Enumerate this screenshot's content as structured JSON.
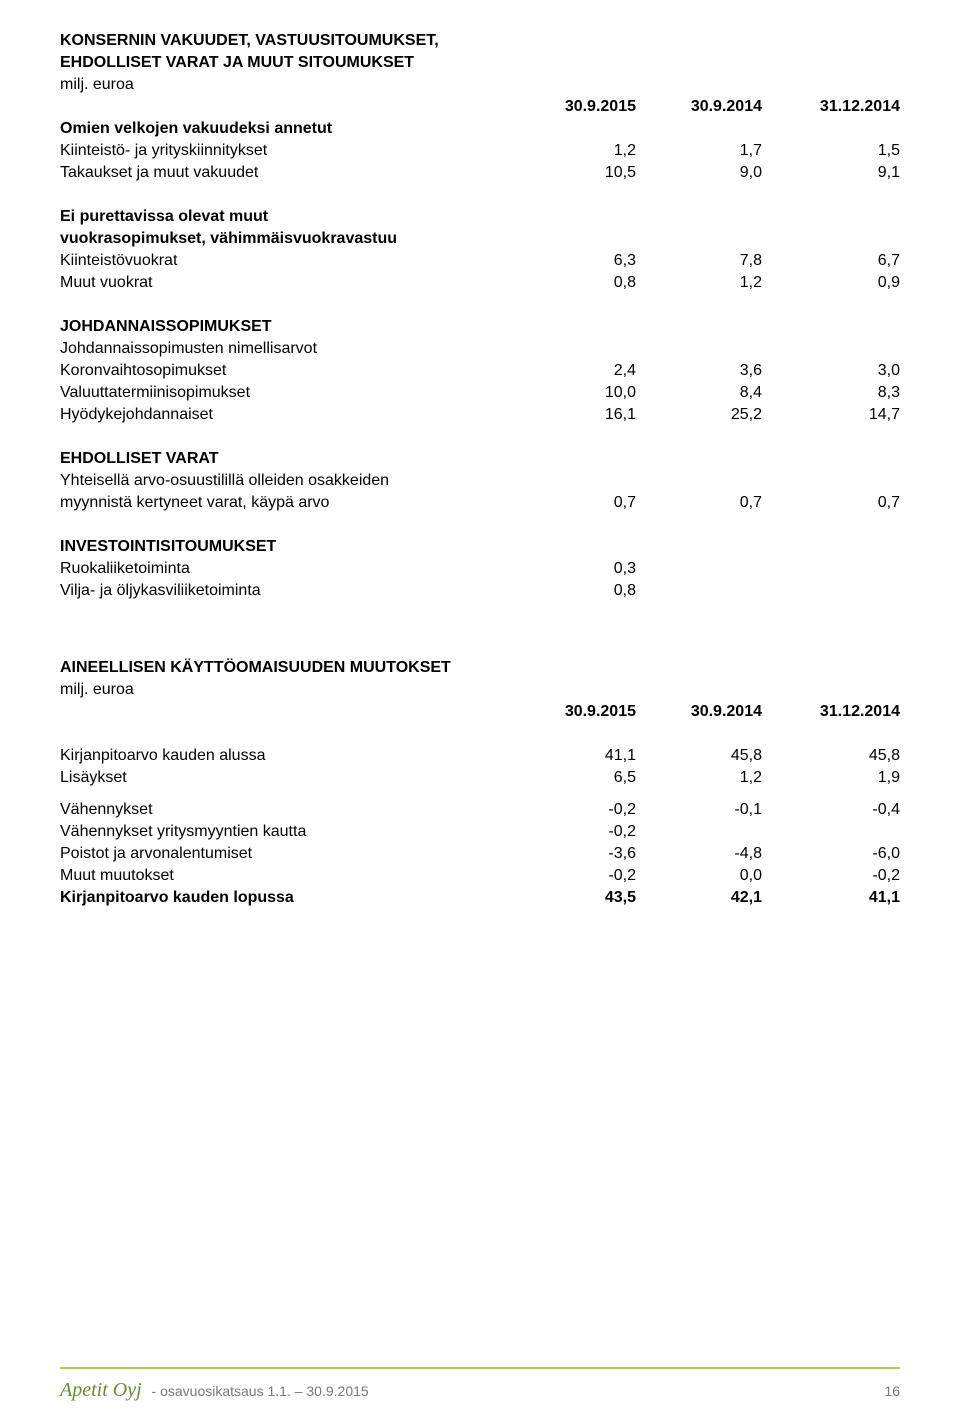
{
  "section1": {
    "title_l1": "KONSERNIN VAKUUDET, VASTUUSITOUMUKSET,",
    "title_l2": "EHDOLLISET VARAT JA MUUT SITOUMUKSET",
    "unit": "milj. euroa",
    "head_c1": "30.9.2015",
    "head_c2": "30.9.2014",
    "head_c3": "31.12.2014",
    "own_debts_title": "Omien velkojen vakuudeksi annetut",
    "row_kiinteisto": {
      "label": "Kiinteistö- ja yrityskiinnitykset",
      "v1": "1,2",
      "v2": "1,7",
      "v3": "1,5"
    },
    "row_takaukset": {
      "label": "Takaukset ja muut vakuudet",
      "v1": "10,5",
      "v2": "9,0",
      "v3": "9,1"
    },
    "ei_pur_title_l1": "Ei purettavissa olevat muut",
    "ei_pur_title_l2": "vuokrasopimukset, vähimmäisvuokravastuu",
    "row_kiintvuokrat": {
      "label": "Kiinteistövuokrat",
      "v1": "6,3",
      "v2": "7,8",
      "v3": "6,7"
    },
    "row_muutvuokrat": {
      "label": "Muut vuokrat",
      "v1": "0,8",
      "v2": "1,2",
      "v3": "0,9"
    },
    "deriv_title": "JOHDANNAISSOPIMUKSET",
    "deriv_sub": "Johdannaissopimusten nimellisarvot",
    "row_koron": {
      "label": "Koronvaihtosopimukset",
      "v1": "2,4",
      "v2": "3,6",
      "v3": "3,0"
    },
    "row_valuutta": {
      "label": "Valuuttatermiinisopimukset",
      "v1": "10,0",
      "v2": "8,4",
      "v3": "8,3"
    },
    "row_hyodyke": {
      "label": "Hyödykejohdannaiset",
      "v1": "16,1",
      "v2": "25,2",
      "v3": "14,7"
    },
    "contingent_title": "EHDOLLISET VARAT",
    "contingent_l1": "Yhteisellä arvo-osuustilillä olleiden osakkeiden",
    "row_myynnista": {
      "label": "myynnistä kertyneet varat, käypä arvo",
      "v1": "0,7",
      "v2": "0,7",
      "v3": "0,7"
    },
    "invest_title": "INVESTOINTISITOUMUKSET",
    "row_ruoka": {
      "label": "Ruokaliiketoiminta",
      "v1": "0,3"
    },
    "row_vilja": {
      "label": "Vilja- ja öljykasviliiketoiminta",
      "v1": "0,8"
    }
  },
  "section2": {
    "title": "AINEELLISEN KÄYTTÖOMAISUUDEN MUUTOKSET",
    "unit": "milj. euroa",
    "head_c1": "30.9.2015",
    "head_c2": "30.9.2014",
    "head_c3": "31.12.2014",
    "row_kirjan_alussa": {
      "label": "Kirjanpitoarvo kauden alussa",
      "v1": "41,1",
      "v2": "45,8",
      "v3": "45,8"
    },
    "row_lisaykset": {
      "label": "Lisäykset",
      "v1": "6,5",
      "v2": "1,2",
      "v3": "1,9"
    },
    "row_vahennykset": {
      "label": "Vähennykset",
      "v1": "-0,2",
      "v2": "-0,1",
      "v3": "-0,4"
    },
    "row_vahennykset_yritys": {
      "label": "Vähennykset yritysmyyntien kautta",
      "v1": "-0,2"
    },
    "row_poistot": {
      "label": "Poistot ja arvonalentumiset",
      "v1": "-3,6",
      "v2": "-4,8",
      "v3": "-6,0"
    },
    "row_muut": {
      "label": "Muut muutokset",
      "v1": "-0,2",
      "v2": "0,0",
      "v3": "-0,2"
    },
    "row_lopussa": {
      "label": "Kirjanpitoarvo kauden lopussa",
      "v1": "43,5",
      "v2": "42,1",
      "v3": "41,1"
    }
  },
  "footer": {
    "company": "Apetit Oyj",
    "sub": "- osavuosikatsaus 1.1. – 30.9.2015",
    "page": "16"
  },
  "style": {
    "accent_line": "#b6cf4b",
    "footer_green": "#6b8a2f",
    "font_size_body": 16,
    "font_size_footer": 14
  }
}
